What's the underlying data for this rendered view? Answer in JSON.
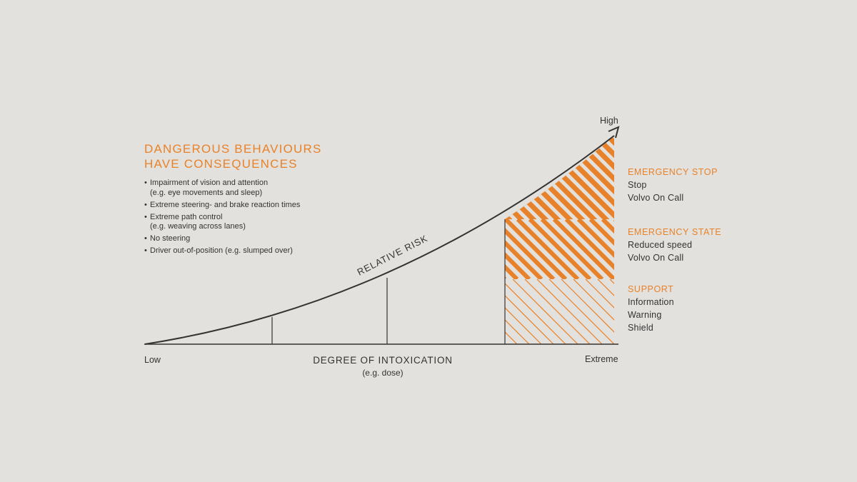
{
  "header": {
    "title_line1": "DANGEROUS BEHAVIOURS",
    "title_line2": "HAVE CONSEQUENCES"
  },
  "behaviours": [
    {
      "text": "Impairment of vision and attention",
      "sub": "(e.g. eye movements and sleep)"
    },
    {
      "text": "Extreme steering- and brake reaction times",
      "sub": ""
    },
    {
      "text": "Extreme path control",
      "sub": "(e.g. weaving across lanes)"
    },
    {
      "text": "No steering",
      "sub": ""
    },
    {
      "text": "Driver out-of-position (e.g. slumped over)",
      "sub": ""
    }
  ],
  "axes": {
    "y_high": "High",
    "x_low": "Low",
    "x_extreme": "Extreme",
    "x_title": "DEGREE OF INTOXICATION",
    "x_subtitle": "(e.g. dose)",
    "curve_label": "RELATIVE RISK"
  },
  "levels": [
    {
      "title": "EMERGENCY STOP",
      "items": [
        "Stop",
        "Volvo On Call"
      ]
    },
    {
      "title": "EMERGENCY STATE",
      "items": [
        "Reduced speed",
        "Volvo On Call"
      ]
    },
    {
      "title": "SUPPORT",
      "items": [
        "Information",
        "Warning",
        "Shield"
      ]
    }
  ],
  "colors": {
    "background": "#e3e1dd",
    "accent": "#e8822a",
    "line": "#333333"
  }
}
